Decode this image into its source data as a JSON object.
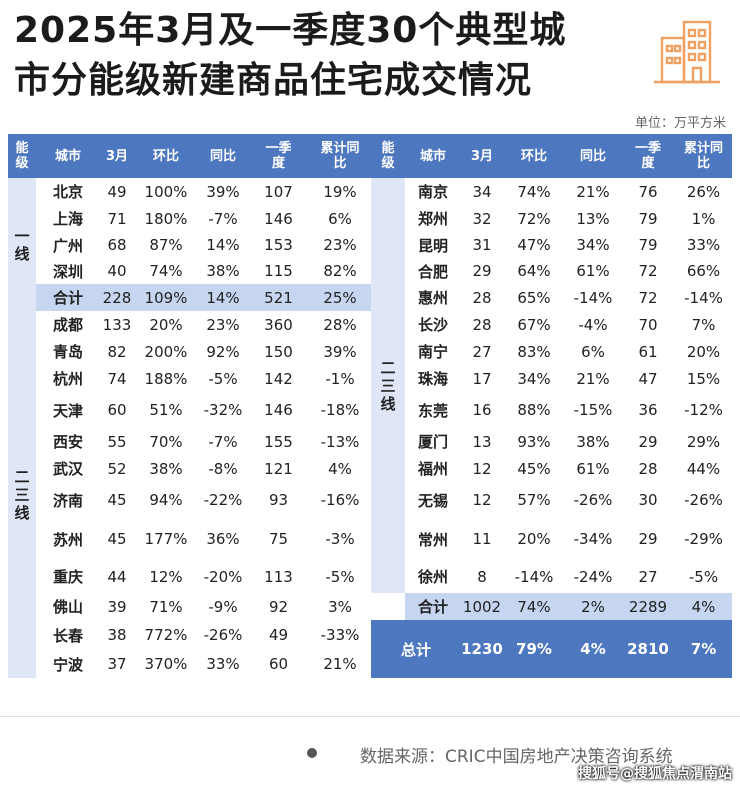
{
  "title_line1": "2025年3月及一季度30个典型城",
  "title_line2": "市分能级新建商品住宅成交情况",
  "unit": "单位：万平方米",
  "headers": {
    "tier": "能级",
    "city": "城市",
    "march": "3月",
    "mom": "环比",
    "yoy": "同比",
    "q1": "一季度",
    "cum_yoy": "累计同比"
  },
  "left_tiers": [
    "一线",
    "二三线"
  ],
  "right_tier": "二三线",
  "left_rows": [
    [
      "北京",
      "49",
      "100%",
      "39%",
      "107",
      "19%"
    ],
    [
      "上海",
      "71",
      "180%",
      "-7%",
      "146",
      "6%"
    ],
    [
      "广州",
      "68",
      "87%",
      "14%",
      "153",
      "23%"
    ],
    [
      "深圳",
      "40",
      "74%",
      "38%",
      "115",
      "82%"
    ],
    [
      "合计",
      "228",
      "109%",
      "14%",
      "521",
      "25%"
    ],
    [
      "成都",
      "133",
      "20%",
      "23%",
      "360",
      "28%"
    ],
    [
      "青岛",
      "82",
      "200%",
      "92%",
      "150",
      "39%"
    ],
    [
      "杭州",
      "74",
      "188%",
      "-5%",
      "142",
      "-1%"
    ],
    [
      "天津",
      "60",
      "51%",
      "-32%",
      "146",
      "-18%"
    ],
    [
      "西安",
      "55",
      "70%",
      "-7%",
      "155",
      "-13%"
    ],
    [
      "武汉",
      "52",
      "38%",
      "-8%",
      "121",
      "4%"
    ],
    [
      "济南",
      "45",
      "94%",
      "-22%",
      "93",
      "-16%"
    ],
    [
      "苏州",
      "45",
      "177%",
      "36%",
      "75",
      "-3%"
    ],
    [
      "重庆",
      "44",
      "12%",
      "-20%",
      "113",
      "-5%"
    ],
    [
      "佛山",
      "39",
      "71%",
      "-9%",
      "92",
      "3%"
    ],
    [
      "长春",
      "38",
      "772%",
      "-26%",
      "49",
      "-33%"
    ],
    [
      "宁波",
      "37",
      "370%",
      "33%",
      "60",
      "21%"
    ]
  ],
  "right_rows": [
    [
      "南京",
      "34",
      "74%",
      "21%",
      "76",
      "26%"
    ],
    [
      "郑州",
      "32",
      "72%",
      "13%",
      "79",
      "1%"
    ],
    [
      "昆明",
      "31",
      "47%",
      "34%",
      "79",
      "33%"
    ],
    [
      "合肥",
      "29",
      "64%",
      "61%",
      "72",
      "66%"
    ],
    [
      "惠州",
      "28",
      "65%",
      "-14%",
      "72",
      "-14%"
    ],
    [
      "长沙",
      "28",
      "67%",
      "-4%",
      "70",
      "7%"
    ],
    [
      "南宁",
      "27",
      "83%",
      "6%",
      "61",
      "20%"
    ],
    [
      "珠海",
      "17",
      "34%",
      "21%",
      "47",
      "15%"
    ],
    [
      "东莞",
      "16",
      "88%",
      "-15%",
      "36",
      "-12%"
    ],
    [
      "厦门",
      "13",
      "93%",
      "38%",
      "29",
      "29%"
    ],
    [
      "福州",
      "12",
      "45%",
      "61%",
      "28",
      "44%"
    ],
    [
      "无锡",
      "12",
      "57%",
      "-26%",
      "30",
      "-26%"
    ],
    [
      "常州",
      "11",
      "20%",
      "-34%",
      "29",
      "-29%"
    ],
    [
      "徐州",
      "8",
      "-14%",
      "-24%",
      "27",
      "-5%"
    ],
    [
      "合计",
      "1002",
      "74%",
      "2%",
      "2289",
      "4%"
    ]
  ],
  "total_row": [
    "总计",
    "1230",
    "79%",
    "4%",
    "2810",
    "7%"
  ],
  "source": "数据来源：CRIC中国房地产决策咨询系统",
  "watermark": "搜狐号@搜狐焦点渭南站",
  "accent_color": "#4d78bf",
  "logo_icon": "building-icon"
}
